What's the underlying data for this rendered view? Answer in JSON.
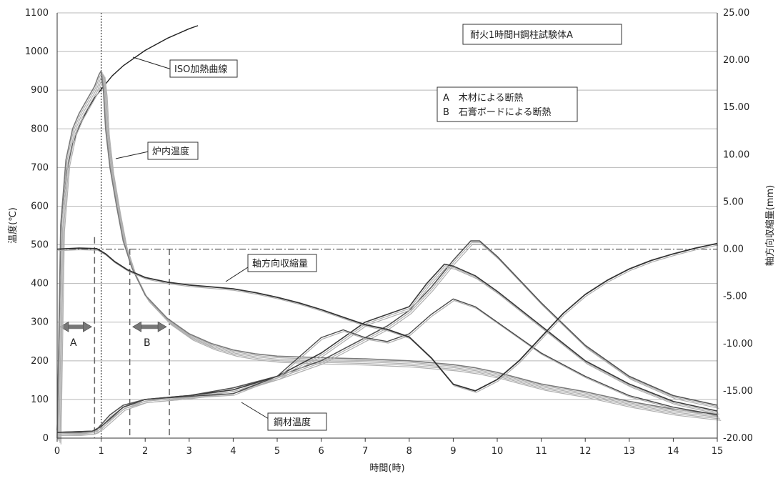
{
  "chart_data": {
    "type": "line",
    "title": "耐火1時間H鋼柱試験体A",
    "xlabel": "時間(時)",
    "ylabel_left": "温度(℃)",
    "ylabel_right": "軸方向収縮量(mm)",
    "xlim": [
      0,
      15
    ],
    "ylim_left": [
      0,
      1100
    ],
    "ylim_right": [
      -20,
      25
    ],
    "x_ticks": [
      "0",
      "1",
      "2",
      "3",
      "4",
      "5",
      "6",
      "7",
      "8",
      "9",
      "10",
      "11",
      "12",
      "13",
      "14",
      "15"
    ],
    "y_left_ticks": [
      "0",
      "100",
      "200",
      "300",
      "400",
      "500",
      "600",
      "700",
      "800",
      "900",
      "1000",
      "1100"
    ],
    "y_right_ticks": [
      "-20.00",
      "-15.00",
      "-10.00",
      "-5.00",
      "0.00",
      "5.00",
      "10.00",
      "15.00",
      "20.00",
      "25.00"
    ],
    "grid": "horizontal",
    "legend_text": [
      "A　木材による断熱",
      "B　石膏ボードによる断熱"
    ],
    "annotations": {
      "iso": "ISO加熱曲線",
      "furnace": "炉内温度",
      "shrink": "軸方向収縮量",
      "steel": "鋼材温度",
      "range_a": "A",
      "range_b": "B"
    },
    "markers": {
      "vertical_dotted_x": 1.0,
      "vertical_dashed_x": [
        0.85,
        1.65,
        2.55
      ],
      "horizontal_dashdot_right": 0.0,
      "range_a": [
        0.0,
        0.85
      ],
      "range_b": [
        1.65,
        2.55
      ]
    },
    "series": [
      {
        "axis": "left",
        "x": [
          0,
          0.1,
          0.2,
          0.35,
          0.5,
          0.7,
          0.85,
          1.0,
          1.25,
          1.5,
          2.0,
          2.5,
          3.0,
          3.2
        ],
        "y": [
          20,
          560,
          680,
          760,
          804,
          853,
          880,
          902,
          937,
          963,
          1003,
          1034,
          1059,
          1067
        ]
      },
      {
        "axis": "left",
        "x": [
          0,
          0.03,
          0.08,
          0.2,
          0.35,
          0.5,
          0.7,
          0.85,
          0.95,
          1.0,
          1.05,
          1.1,
          1.2,
          1.35,
          1.5,
          1.7,
          2.0,
          2.5,
          3.0,
          3.5,
          4.0,
          4.5,
          5.0,
          6.0,
          7.0,
          8.0,
          9.0,
          9.5,
          10.0,
          10.5,
          11.0,
          12.0,
          13.0,
          14.0,
          15.0
        ],
        "y": [
          0,
          200,
          550,
          720,
          800,
          840,
          880,
          910,
          940,
          950,
          900,
          800,
          700,
          600,
          510,
          440,
          370,
          310,
          270,
          245,
          228,
          218,
          212,
          208,
          205,
          200,
          190,
          182,
          170,
          155,
          140,
          120,
          95,
          75,
          62
        ]
      },
      {
        "axis": "left",
        "x": [
          0,
          0.5,
          0.8,
          0.9,
          1.0,
          1.2,
          1.5,
          2.0,
          3.0,
          4.0,
          5.0,
          5.5,
          6.0,
          6.5,
          7.0,
          7.5,
          8.0,
          8.5,
          9.0,
          9.4,
          9.6,
          10.0,
          11.0,
          12.0,
          13.0,
          14.0,
          15.0
        ],
        "y": [
          15,
          15,
          18,
          22,
          35,
          60,
          85,
          100,
          110,
          130,
          160,
          180,
          200,
          230,
          260,
          290,
          330,
          390,
          460,
          510,
          510,
          470,
          350,
          240,
          160,
          110,
          85
        ]
      },
      {
        "axis": "left",
        "x": [
          0,
          0.8,
          1.0,
          1.5,
          2.0,
          3.0,
          4.0,
          5.0,
          6.0,
          6.5,
          7.0,
          7.5,
          8.0,
          8.4,
          8.8,
          9.0,
          9.5,
          10.0,
          11.0,
          12.0,
          13.0,
          14.0,
          15.0
        ],
        "y": [
          15,
          18,
          30,
          80,
          100,
          110,
          125,
          160,
          220,
          260,
          300,
          320,
          340,
          400,
          450,
          445,
          420,
          380,
          290,
          200,
          140,
          95,
          70
        ]
      },
      {
        "axis": "left",
        "x": [
          0,
          0.8,
          1.0,
          1.5,
          2.0,
          3.0,
          4.0,
          5.0,
          5.5,
          6.0,
          6.5,
          7.0,
          7.5,
          8.0,
          8.5,
          9.0,
          9.5,
          10.0,
          11.0,
          12.0,
          13.0,
          14.0,
          15.0
        ],
        "y": [
          15,
          18,
          30,
          80,
          100,
          108,
          115,
          160,
          210,
          260,
          280,
          260,
          250,
          270,
          320,
          360,
          340,
          300,
          220,
          160,
          110,
          80,
          60
        ]
      },
      {
        "axis": "right",
        "x": [
          0,
          0.5,
          0.9,
          1.1,
          1.3,
          1.6,
          2.0,
          2.5,
          3.0,
          3.5,
          4.0,
          4.5,
          5.0,
          5.5,
          6.0,
          6.5,
          7.0,
          7.5,
          8.0,
          8.5,
          9.0,
          9.5,
          10.0,
          10.5,
          11.0,
          11.5,
          12.0,
          12.5,
          13.0,
          13.5,
          14.0,
          14.5,
          15.0
        ],
        "y": [
          0.0,
          0.1,
          0.05,
          -0.5,
          -1.3,
          -2.2,
          -3.0,
          -3.5,
          -3.8,
          -4.0,
          -4.2,
          -4.6,
          -5.1,
          -5.7,
          -6.4,
          -7.2,
          -8.0,
          -8.5,
          -9.3,
          -11.5,
          -14.3,
          -15.0,
          -13.8,
          -11.8,
          -9.3,
          -6.8,
          -4.8,
          -3.3,
          -2.1,
          -1.2,
          -0.5,
          0.1,
          0.6
        ]
      }
    ]
  }
}
